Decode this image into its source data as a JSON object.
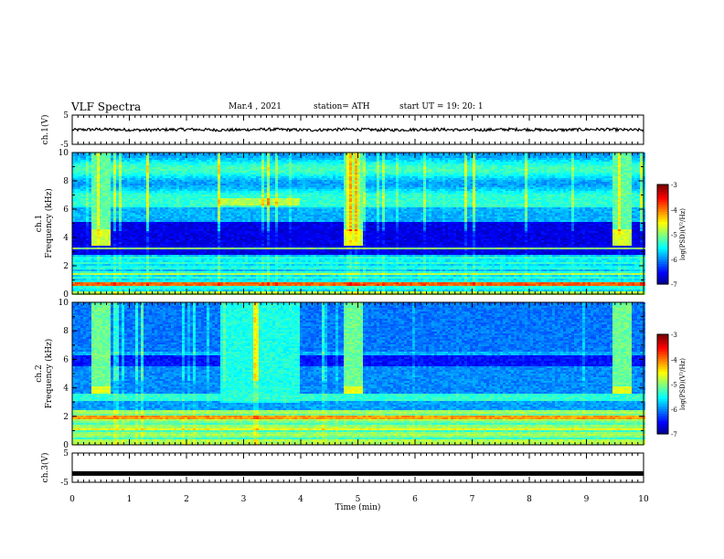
{
  "header": {
    "title": "VLF Spectra",
    "date": "Mar.4 , 2021",
    "station": "station= ATH",
    "start": "start UT = 19: 20: 1"
  },
  "chart_data": [
    {
      "type": "line",
      "panel": "ch.1 waveform",
      "ylabel": "ch.1(V)",
      "ylim": [
        -5,
        5
      ],
      "yticks": [
        "5",
        "-5"
      ],
      "description_values": {
        "mean": 0,
        "noise_amplitude": 0.5
      },
      "series": [
        {
          "values_note": "noisy trace around 0 V",
          "x": [
            0,
            10
          ],
          "y": [
            0,
            0
          ]
        }
      ]
    },
    {
      "type": "heatmap",
      "panel": "ch.1 spectrogram",
      "ylabel": "ch.1\nFrequency (kHz)",
      "ylim": [
        0,
        10
      ],
      "yticks": [
        "0",
        "2",
        "4",
        "6",
        "8",
        "10"
      ],
      "colorbar": {
        "label": "log(PSD)(V²/Hz)",
        "range": [
          -7,
          -3
        ],
        "ticks": [
          "-3",
          "-4",
          "-5",
          "-6",
          "-7"
        ]
      },
      "bursts_min": [
        [
          0.3,
          0.65
        ],
        [
          4.75,
          5.05
        ],
        [
          9.45,
          9.75
        ]
      ],
      "band_kHz": [
        6.3,
        6.8
      ],
      "band_interval_min": [
        2.55,
        3.95
      ]
    },
    {
      "type": "heatmap",
      "panel": "ch.2 spectrogram",
      "ylabel": "ch.2\nFrequency (kHz)",
      "ylim": [
        0,
        10
      ],
      "yticks": [
        "0",
        "2",
        "4",
        "6",
        "8",
        "10"
      ],
      "colorbar": {
        "label": "log(PSD)(V²/Hz)",
        "range": [
          -7,
          -3
        ],
        "ticks": [
          "-3",
          "-4",
          "-5",
          "-6",
          "-7"
        ]
      },
      "bursts_min": [
        [
          0.3,
          0.65
        ],
        [
          4.75,
          5.05
        ],
        [
          9.45,
          9.75
        ]
      ],
      "band_interval_min": [
        2.55,
        3.95
      ]
    },
    {
      "type": "line",
      "panel": "ch.3 waveform",
      "ylabel": "ch.3(V)",
      "ylim": [
        -5,
        5
      ],
      "yticks": [
        "5",
        "-5"
      ],
      "series": [
        {
          "x": [
            0,
            10
          ],
          "y": [
            -2,
            -2
          ]
        }
      ]
    }
  ],
  "xaxis": {
    "label": "Time (min)",
    "ticks": [
      "0",
      "1",
      "2",
      "3",
      "4",
      "5",
      "6",
      "7",
      "8",
      "9",
      "10"
    ],
    "range": [
      0,
      10
    ]
  },
  "colors": {
    "cmap": [
      "#00007f",
      "#0000ff",
      "#0080ff",
      "#00ffff",
      "#80ff80",
      "#ffff00",
      "#ff8000",
      "#ff0000",
      "#7f0000"
    ]
  }
}
